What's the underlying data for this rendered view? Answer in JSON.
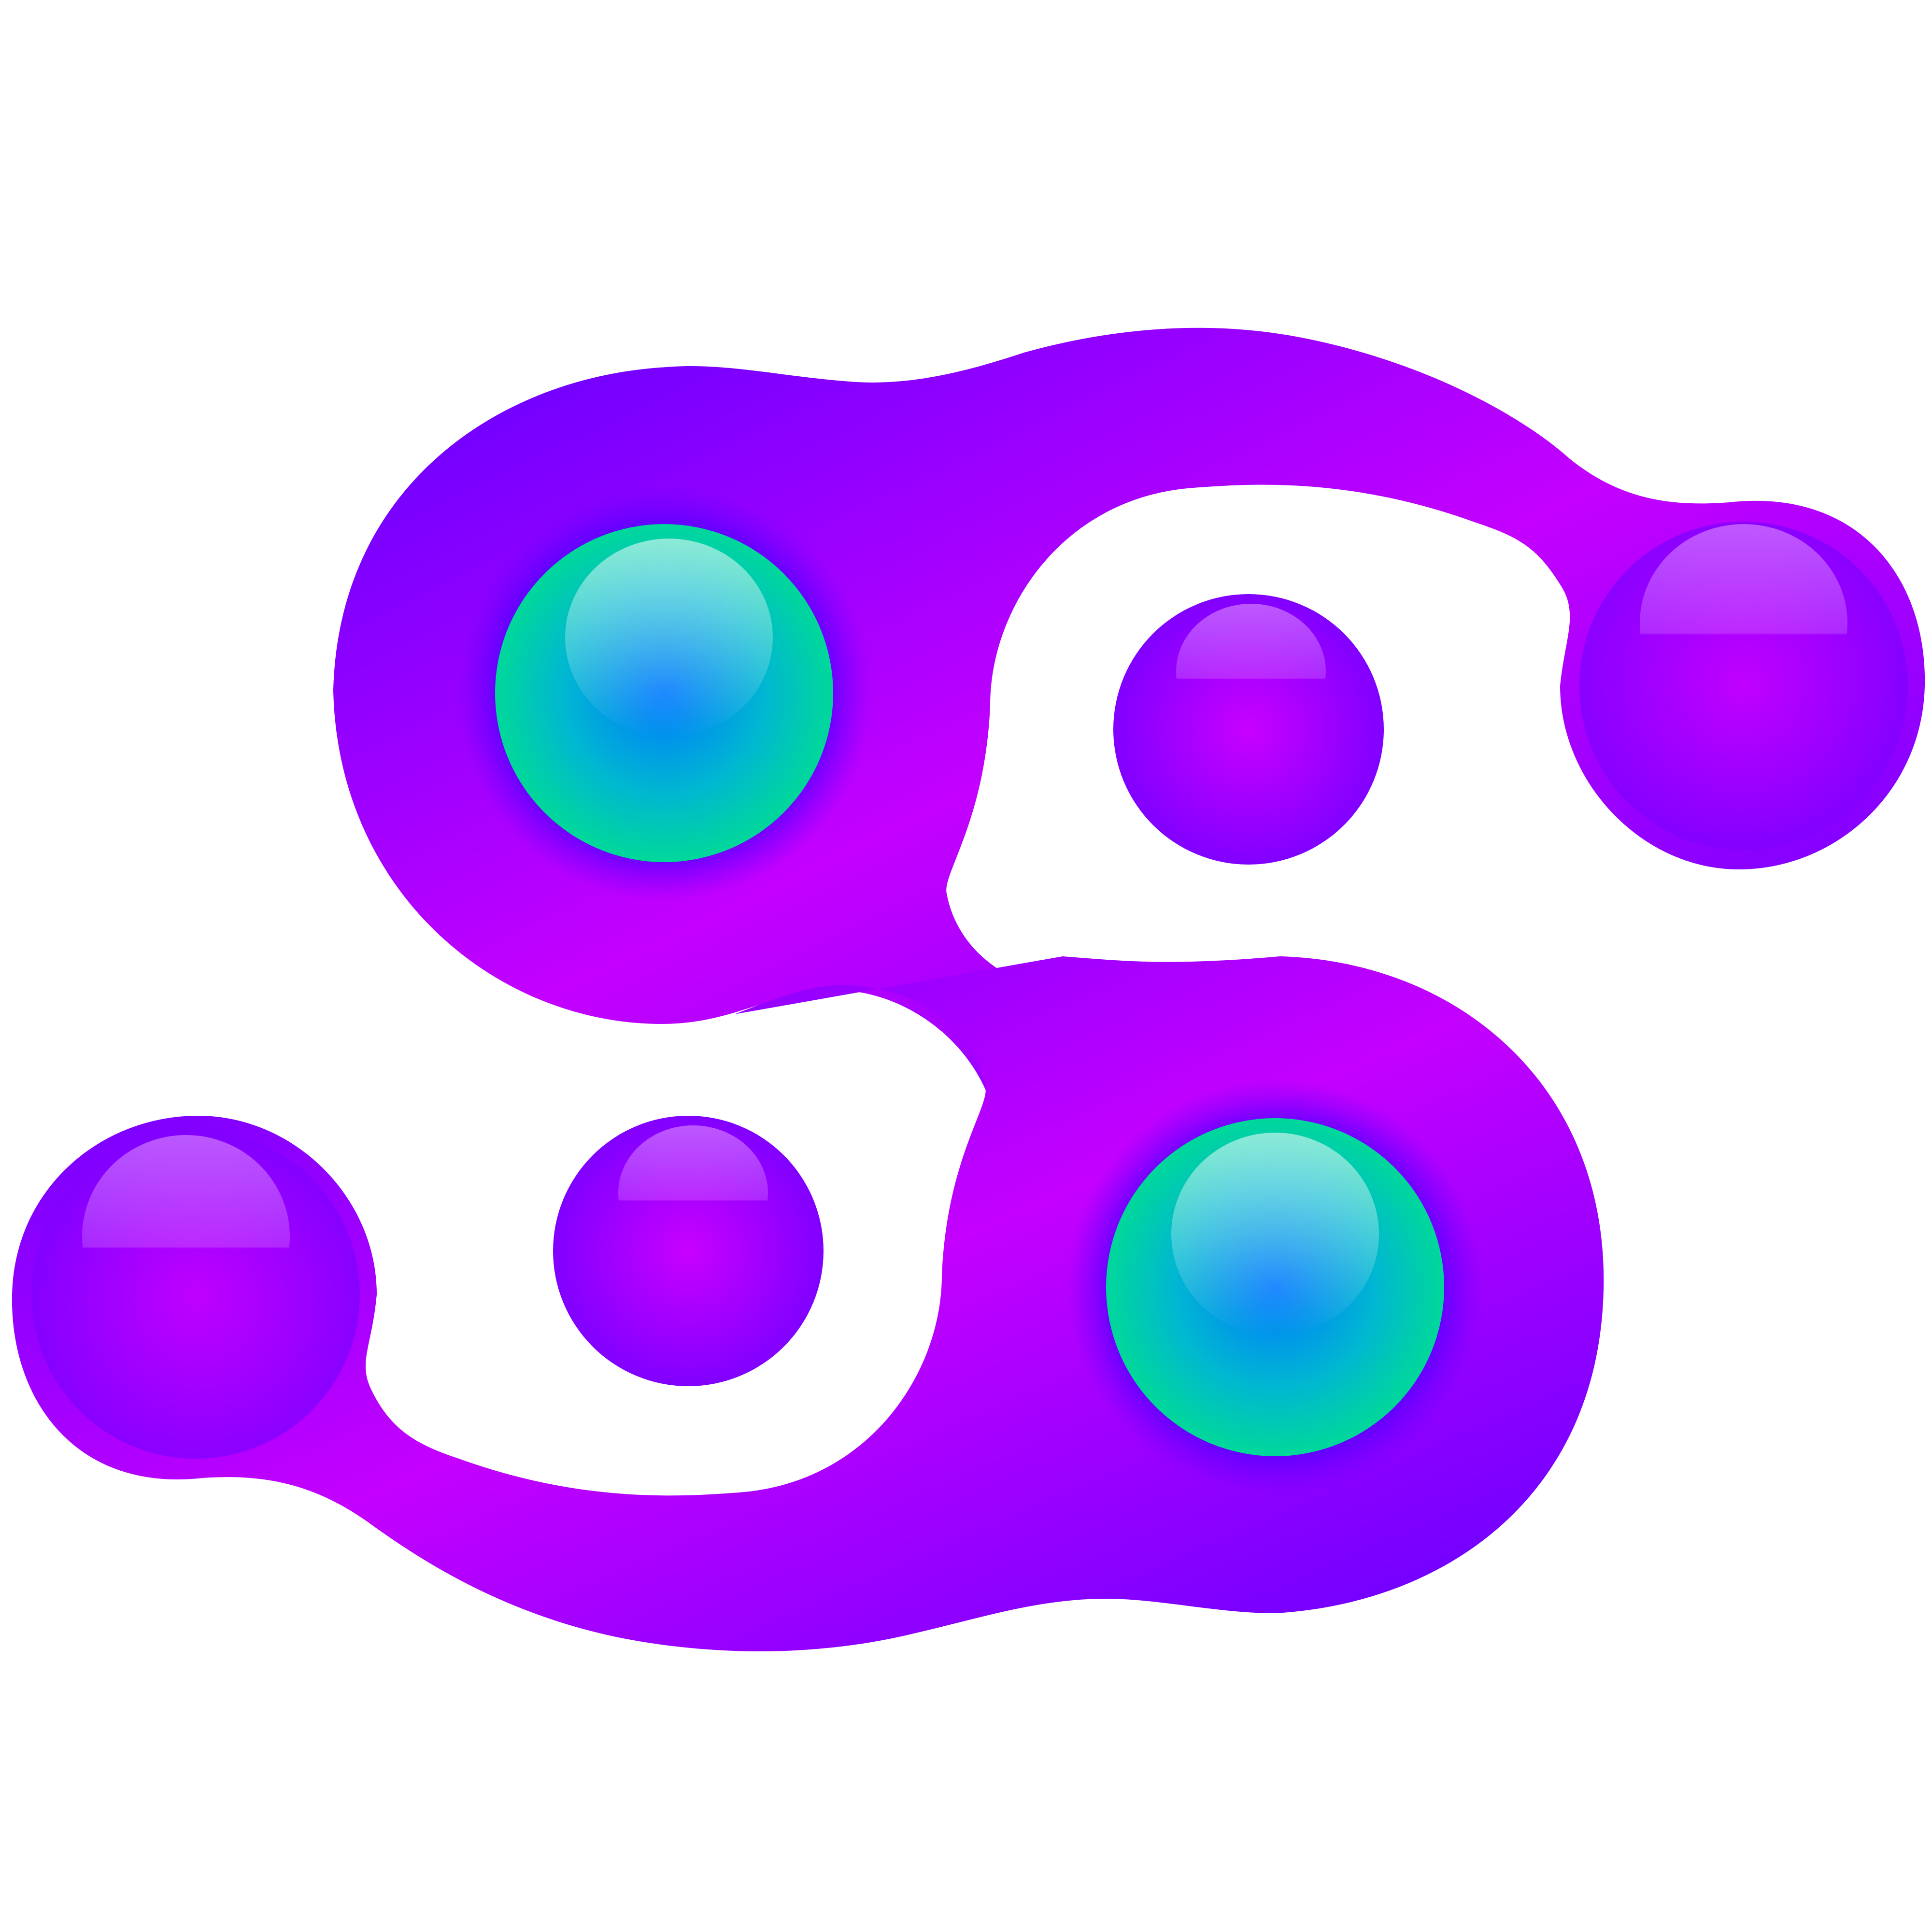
{
  "logo": {
    "icon": "cancer-zodiac-blob-logo-icon",
    "colors": {
      "background": "#ffffff",
      "body_edge": "#5f00ff",
      "body_mid": "#9a00ff",
      "body_center": "#c800ff",
      "orb_green": "#00e08c",
      "orb_blue": "#0080ff",
      "orb_ring": "#5a00ff"
    }
  }
}
